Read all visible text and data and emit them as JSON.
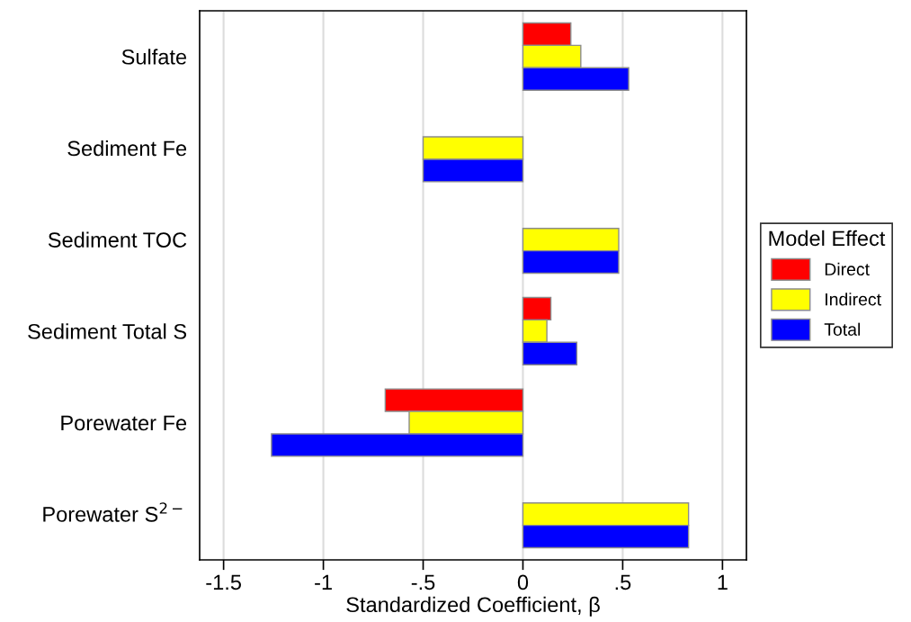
{
  "chart_data": {
    "type": "bar",
    "orientation": "horizontal",
    "xlabel": "Standardized Coefficient, β",
    "legend_title": "Model Effect",
    "categories": [
      "Sulfate",
      "Sediment Fe",
      "Sediment TOC",
      "Sediment Total S",
      "Porewater Fe",
      "Porewater S$^{2−}$"
    ],
    "series": [
      {
        "name": "Direct",
        "color": "#ff0000",
        "values": [
          0.24,
          null,
          null,
          0.14,
          -0.69,
          null
        ]
      },
      {
        "name": "Indirect",
        "color": "#ffff00",
        "values": [
          0.29,
          -0.5,
          0.48,
          0.12,
          -0.57,
          0.83
        ]
      },
      {
        "name": "Total",
        "color": "#0000ff",
        "values": [
          0.53,
          -0.5,
          0.48,
          0.27,
          -1.26,
          0.83
        ]
      }
    ],
    "xlim": [
      -1.62,
      1.12
    ],
    "xticks": [
      -1.5,
      -1,
      {
        "value": -0.5,
        "label": "-.5"
      },
      0,
      {
        "value": 0.5,
        "label": ".5"
      },
      1
    ],
    "grid": "x",
    "legend": "right"
  }
}
